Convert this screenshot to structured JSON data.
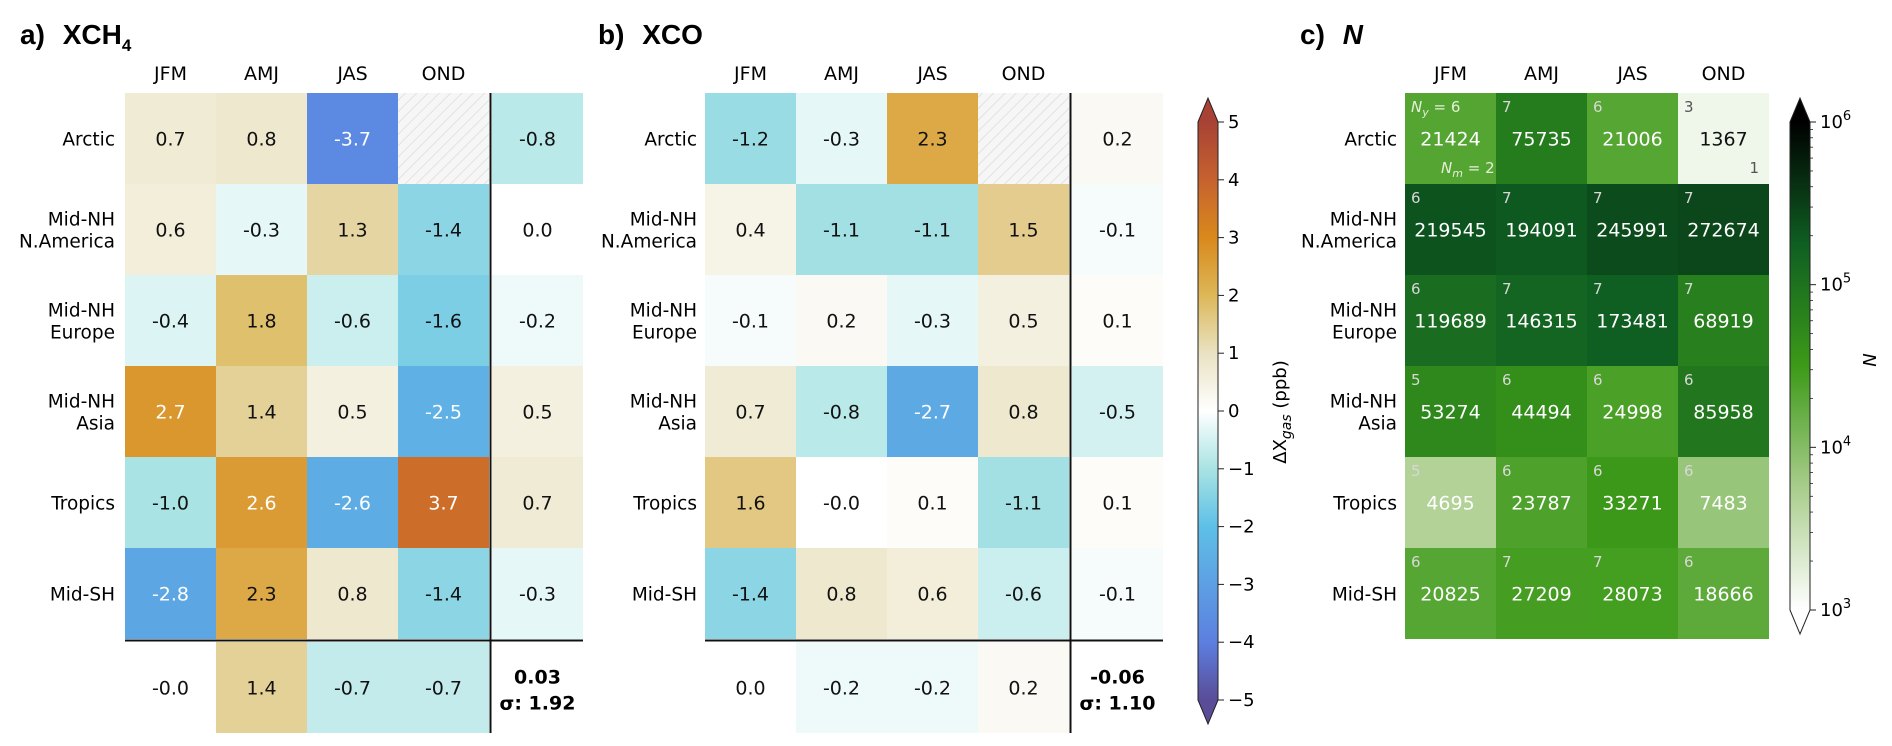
{
  "chart_data": [
    {
      "type": "heatmap",
      "panel_label": "a)",
      "title_main": "XCH",
      "title_sub": "4",
      "columns": [
        "JFM",
        "AMJ",
        "JAS",
        "OND"
      ],
      "rows": [
        {
          "line1": "Arctic",
          "line2": ""
        },
        {
          "line1": "Mid-NH",
          "line2": "N.America"
        },
        {
          "line1": "Mid-NH",
          "line2": "Europe"
        },
        {
          "line1": "Mid-NH",
          "line2": "Asia"
        },
        {
          "line1": "Tropics",
          "line2": ""
        },
        {
          "line1": "Mid-SH",
          "line2": ""
        }
      ],
      "values": [
        [
          0.7,
          0.8,
          -3.7,
          null
        ],
        [
          0.6,
          -0.3,
          1.3,
          -1.4
        ],
        [
          -0.4,
          1.8,
          -0.6,
          -1.6
        ],
        [
          2.7,
          1.4,
          0.5,
          -2.5
        ],
        [
          -1.0,
          2.6,
          -2.6,
          3.7
        ],
        [
          -2.8,
          2.3,
          0.8,
          -1.4
        ]
      ],
      "labels": [
        [
          "0.7",
          "0.8",
          "-3.7",
          ""
        ],
        [
          "0.6",
          "-0.3",
          "1.3",
          "-1.4"
        ],
        [
          "-0.4",
          "1.8",
          "-0.6",
          "-1.6"
        ],
        [
          "2.7",
          "1.4",
          "0.5",
          "-2.5"
        ],
        [
          "-1.0",
          "2.6",
          "-2.6",
          "3.7"
        ],
        [
          "-2.8",
          "2.3",
          "0.8",
          "-1.4"
        ]
      ],
      "row_means": [
        -0.8,
        0.0,
        -0.2,
        0.5,
        0.7,
        -0.3
      ],
      "row_mean_labels": [
        "-0.8",
        "0.0",
        "-0.2",
        "0.5",
        "0.7",
        "-0.3"
      ],
      "col_means": [
        -0.0,
        1.4,
        -0.7,
        -0.7
      ],
      "col_mean_labels": [
        "-0.0",
        "1.4",
        "-0.7",
        "-0.7"
      ],
      "overall_mean": "0.03",
      "sigma_label": "σ: 1.92"
    },
    {
      "type": "heatmap",
      "panel_label": "b)",
      "title_main": "XCO",
      "title_sub": "",
      "columns": [
        "JFM",
        "AMJ",
        "JAS",
        "OND"
      ],
      "rows": [
        {
          "line1": "Arctic",
          "line2": ""
        },
        {
          "line1": "Mid-NH",
          "line2": "N.America"
        },
        {
          "line1": "Mid-NH",
          "line2": "Europe"
        },
        {
          "line1": "Mid-NH",
          "line2": "Asia"
        },
        {
          "line1": "Tropics",
          "line2": ""
        },
        {
          "line1": "Mid-SH",
          "line2": ""
        }
      ],
      "values": [
        [
          -1.2,
          -0.3,
          2.3,
          null
        ],
        [
          0.4,
          -1.1,
          -1.1,
          1.5
        ],
        [
          -0.1,
          0.2,
          -0.3,
          0.5
        ],
        [
          0.7,
          -0.8,
          -2.7,
          0.8
        ],
        [
          1.6,
          -0.0,
          0.1,
          -1.1
        ],
        [
          -1.4,
          0.8,
          0.6,
          -0.6
        ]
      ],
      "labels": [
        [
          "-1.2",
          "-0.3",
          "2.3",
          ""
        ],
        [
          "0.4",
          "-1.1",
          "-1.1",
          "1.5"
        ],
        [
          "-0.1",
          "0.2",
          "-0.3",
          "0.5"
        ],
        [
          "0.7",
          "-0.8",
          "-2.7",
          "0.8"
        ],
        [
          "1.6",
          "-0.0",
          "0.1",
          "-1.1"
        ],
        [
          "-1.4",
          "0.8",
          "0.6",
          "-0.6"
        ]
      ],
      "row_means": [
        0.2,
        -0.1,
        0.1,
        -0.5,
        0.1,
        -0.1
      ],
      "row_mean_labels": [
        "0.2",
        "-0.1",
        "0.1",
        "-0.5",
        "0.1",
        "-0.1"
      ],
      "col_means": [
        0.0,
        -0.2,
        -0.2,
        0.2
      ],
      "col_mean_labels": [
        "0.0",
        "-0.2",
        "-0.2",
        "0.2"
      ],
      "overall_mean": "-0.06",
      "sigma_label": "σ: 1.10"
    },
    {
      "type": "heatmap",
      "panel_label": "c)",
      "title_main": "N",
      "title_sub": "",
      "columns": [
        "JFM",
        "AMJ",
        "JAS",
        "OND"
      ],
      "rows": [
        {
          "line1": "Arctic",
          "line2": ""
        },
        {
          "line1": "Mid-NH",
          "line2": "N.America"
        },
        {
          "line1": "Mid-NH",
          "line2": "Europe"
        },
        {
          "line1": "Mid-NH",
          "line2": "Asia"
        },
        {
          "line1": "Tropics",
          "line2": ""
        },
        {
          "line1": "Mid-SH",
          "line2": ""
        }
      ],
      "values": [
        [
          21424,
          75735,
          21006,
          1367
        ],
        [
          219545,
          194091,
          245991,
          272674
        ],
        [
          119689,
          146315,
          173481,
          68919
        ],
        [
          53274,
          44494,
          24998,
          85958
        ],
        [
          4695,
          23787,
          33271,
          7483
        ],
        [
          20825,
          27209,
          28073,
          18666
        ]
      ],
      "labels": [
        [
          "21424",
          "75735",
          "21006",
          "1367"
        ],
        [
          "219545",
          "194091",
          "245991",
          "272674"
        ],
        [
          "119689",
          "146315",
          "173481",
          "68919"
        ],
        [
          "53274",
          "44494",
          "24998",
          "85958"
        ],
        [
          "4695",
          "23787",
          "33271",
          "7483"
        ],
        [
          "20825",
          "27209",
          "28073",
          "18666"
        ]
      ],
      "n_years": [
        [
          "6",
          "7",
          "6",
          "3"
        ],
        [
          "6",
          "7",
          "7",
          "7"
        ],
        [
          "6",
          "7",
          "7",
          "7"
        ],
        [
          "5",
          "6",
          "6",
          "6"
        ],
        [
          "5",
          "6",
          "6",
          "6"
        ],
        [
          "6",
          "7",
          "7",
          "6"
        ]
      ],
      "ny_annotation": {
        "label": "N",
        "sub": "y",
        "eq": " = ",
        "value": "6"
      },
      "nm_annotation": {
        "label": "N",
        "sub": "m",
        "eq": " = ",
        "value": "2"
      },
      "nm_arctic_ond": "1"
    }
  ],
  "colorbar_diff": {
    "label_prefix": "ΔX",
    "label_sub": "gas",
    "label_suffix": " (ppb)",
    "range": [
      -5,
      5
    ],
    "ticks": [
      -5,
      -4,
      -3,
      -2,
      -1,
      0,
      1,
      2,
      3,
      4,
      5
    ],
    "tick_labels": [
      "−5",
      "−4",
      "−3",
      "−2",
      "−1",
      "0",
      "1",
      "2",
      "3",
      "4",
      "5"
    ]
  },
  "colorbar_n": {
    "label": "N",
    "range_log10": [
      3,
      6
    ],
    "ticks_exp": [
      "3",
      "4",
      "5",
      "6"
    ],
    "tick_base": "10"
  },
  "colors": {
    "neg_strong": "#5b8de9",
    "neg_mid": "#5ec0e6",
    "neg_light": "#a9e3e3",
    "neutral": "#ffffff",
    "pos_light": "#e3d7a6",
    "pos_mid": "#dca238",
    "pos_strong": "#d46e1b",
    "n_low": "#ffffff",
    "n_mid": "#3c9a18",
    "n_high": "#0a2b17"
  }
}
